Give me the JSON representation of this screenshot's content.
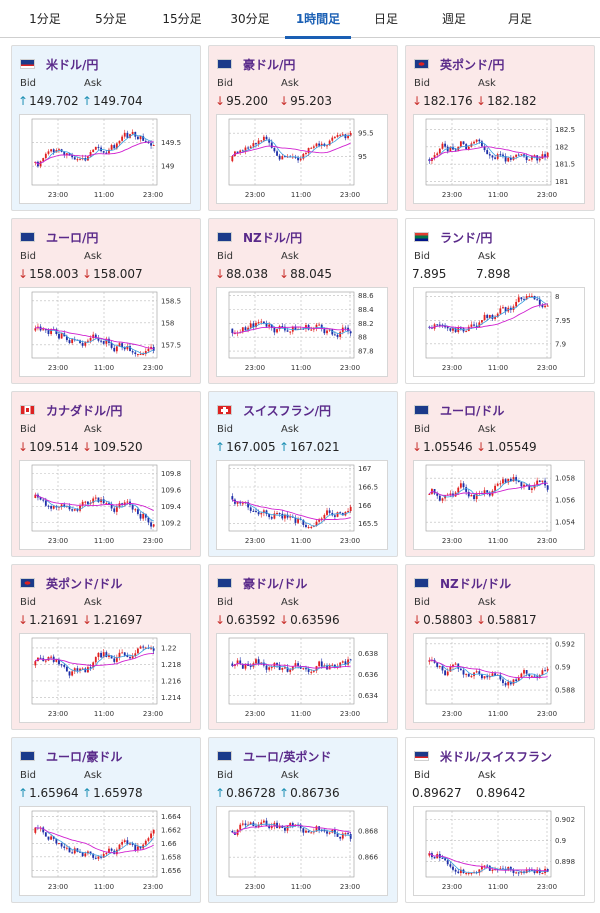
{
  "tabs": [
    {
      "label": "1分足",
      "active": false
    },
    {
      "label": "5分足",
      "active": false
    },
    {
      "label": "15分足",
      "active": false
    },
    {
      "label": "30分足",
      "active": false
    },
    {
      "label": "1時間足",
      "active": true
    },
    {
      "label": "日足",
      "active": false
    },
    {
      "label": "週足",
      "active": false
    },
    {
      "label": "月足",
      "active": false
    }
  ],
  "bid_label": "Bid",
  "ask_label": "Ask",
  "x_ticks": [
    "23:00",
    "11:00",
    "23:00"
  ],
  "colors": {
    "up_card": "#eaf4fc",
    "down_card": "#fbe9e9",
    "bull": "#e02020",
    "bear": "#1e2fa8",
    "ma_short": "#3aa0e0",
    "ma_long": "#d020d0"
  },
  "cards": [
    {
      "pair": "米ドル/円",
      "flag": "us-jp-flag-icon",
      "trend": "up",
      "bid": "149.702",
      "ask": "149.704",
      "y_ticks": [
        "149.5",
        "149"
      ],
      "chart_data": {
        "type": "candlestick",
        "y_range": [
          148.6,
          150.0
        ],
        "x_ticks": [
          "23:00",
          "11:00",
          "23:00"
        ]
      }
    },
    {
      "pair": "豪ドル/円",
      "flag": "au-jp-flag-icon",
      "trend": "down",
      "bid": "95.200",
      "ask": "95.203",
      "y_ticks": [
        "95.5",
        "95"
      ],
      "chart_data": {
        "type": "candlestick",
        "y_range": [
          94.4,
          95.8
        ],
        "x_ticks": [
          "23:00",
          "11:00",
          "23:00"
        ]
      }
    },
    {
      "pair": "英ポンド/円",
      "flag": "gb-jp-flag-icon",
      "trend": "down",
      "bid": "182.176",
      "ask": "182.182",
      "y_ticks": [
        "182.5",
        "182",
        "181.5",
        "181"
      ],
      "chart_data": {
        "type": "candlestick",
        "y_range": [
          180.9,
          182.8
        ],
        "x_ticks": [
          "23:00",
          "11:00",
          "23:00"
        ]
      }
    },
    {
      "pair": "ユーロ/円",
      "flag": "eu-jp-flag-icon",
      "trend": "down",
      "bid": "158.003",
      "ask": "158.007",
      "y_ticks": [
        "158.5",
        "158",
        "157.5"
      ],
      "chart_data": {
        "type": "candlestick",
        "y_range": [
          157.2,
          158.7
        ],
        "x_ticks": [
          "23:00",
          "11:00",
          "23:00"
        ]
      }
    },
    {
      "pair": "NZドル/円",
      "flag": "nz-jp-flag-icon",
      "trend": "down",
      "bid": "88.038",
      "ask": "88.045",
      "y_ticks": [
        "88.6",
        "88.4",
        "88.2",
        "88",
        "87.8"
      ],
      "chart_data": {
        "type": "candlestick",
        "y_range": [
          87.7,
          88.65
        ],
        "x_ticks": [
          "23:00",
          "11:00",
          "23:00"
        ]
      }
    },
    {
      "pair": "ランド/円",
      "flag": "za-jp-flag-icon",
      "trend": "flat",
      "bid": "7.895",
      "ask": "7.898",
      "y_ticks": [
        "8",
        "7.95",
        "7.9"
      ],
      "chart_data": {
        "type": "candlestick",
        "y_range": [
          7.87,
          8.01
        ],
        "x_ticks": [
          "23:00",
          "11:00",
          "23:00"
        ]
      }
    },
    {
      "pair": "カナダドル/円",
      "flag": "ca-jp-flag-icon",
      "trend": "down",
      "bid": "109.514",
      "ask": "109.520",
      "y_ticks": [
        "109.8",
        "109.6",
        "109.4",
        "109.2"
      ],
      "chart_data": {
        "type": "candlestick",
        "y_range": [
          109.1,
          109.9
        ],
        "x_ticks": [
          "23:00",
          "11:00",
          "23:00"
        ]
      }
    },
    {
      "pair": "スイスフラン/円",
      "flag": "ch-jp-flag-icon",
      "trend": "up",
      "bid": "167.005",
      "ask": "167.021",
      "y_ticks": [
        "167",
        "166.5",
        "166",
        "165.5"
      ],
      "chart_data": {
        "type": "candlestick",
        "y_range": [
          165.3,
          167.1
        ],
        "x_ticks": [
          "23:00",
          "11:00",
          "23:00"
        ]
      }
    },
    {
      "pair": "ユーロ/ドル",
      "flag": "eu-us-flag-icon",
      "trend": "down",
      "bid": "1.05546",
      "ask": "1.05549",
      "y_ticks": [
        "1.058",
        "1.056",
        "1.054"
      ],
      "chart_data": {
        "type": "candlestick",
        "y_range": [
          1.0532,
          1.0592
        ],
        "x_ticks": [
          "23:00",
          "11:00",
          "23:00"
        ]
      }
    },
    {
      "pair": "英ポンド/ドル",
      "flag": "gb-us-flag-icon",
      "trend": "down",
      "bid": "1.21691",
      "ask": "1.21697",
      "y_ticks": [
        "1.22",
        "1.218",
        "1.216",
        "1.214"
      ],
      "chart_data": {
        "type": "candlestick",
        "y_range": [
          1.2132,
          1.2212
        ],
        "x_ticks": [
          "23:00",
          "11:00",
          "23:00"
        ]
      }
    },
    {
      "pair": "豪ドル/ドル",
      "flag": "au-us-flag-icon",
      "trend": "down",
      "bid": "0.63592",
      "ask": "0.63596",
      "y_ticks": [
        "0.638",
        "0.636",
        "0.634"
      ],
      "chart_data": {
        "type": "candlestick",
        "y_range": [
          0.6332,
          0.6395
        ],
        "x_ticks": [
          "23:00",
          "11:00",
          "23:00"
        ]
      }
    },
    {
      "pair": "NZドル/ドル",
      "flag": "nz-us-flag-icon",
      "trend": "down",
      "bid": "0.58803",
      "ask": "0.58817",
      "y_ticks": [
        "0.592",
        "0.59",
        "0.588"
      ],
      "chart_data": {
        "type": "candlestick",
        "y_range": [
          0.5868,
          0.5925
        ],
        "x_ticks": [
          "23:00",
          "11:00",
          "23:00"
        ]
      }
    },
    {
      "pair": "ユーロ/豪ドル",
      "flag": "eu-au-flag-icon",
      "trend": "up",
      "bid": "1.65964",
      "ask": "1.65978",
      "y_ticks": [
        "1.664",
        "1.662",
        "1.66",
        "1.658",
        "1.656"
      ],
      "chart_data": {
        "type": "candlestick",
        "y_range": [
          1.655,
          1.6648
        ],
        "x_ticks": [
          "23:00",
          "11:00",
          "23:00"
        ]
      }
    },
    {
      "pair": "ユーロ/英ポンド",
      "flag": "eu-gb-flag-icon",
      "trend": "up",
      "bid": "0.86728",
      "ask": "0.86736",
      "y_ticks": [
        "0.868",
        "0.866"
      ],
      "chart_data": {
        "type": "candlestick",
        "y_range": [
          0.8645,
          0.8695
        ],
        "x_ticks": [
          "23:00",
          "11:00",
          "23:00"
        ]
      }
    },
    {
      "pair": "米ドル/スイスフラン",
      "flag": "us-ch-flag-icon",
      "trend": "flat",
      "bid": "0.89627",
      "ask": "0.89642",
      "y_ticks": [
        "0.902",
        "0.9",
        "0.898"
      ],
      "chart_data": {
        "type": "candlestick",
        "y_range": [
          0.8965,
          0.9028
        ],
        "x_ticks": [
          "23:00",
          "11:00",
          "23:00"
        ]
      }
    }
  ]
}
